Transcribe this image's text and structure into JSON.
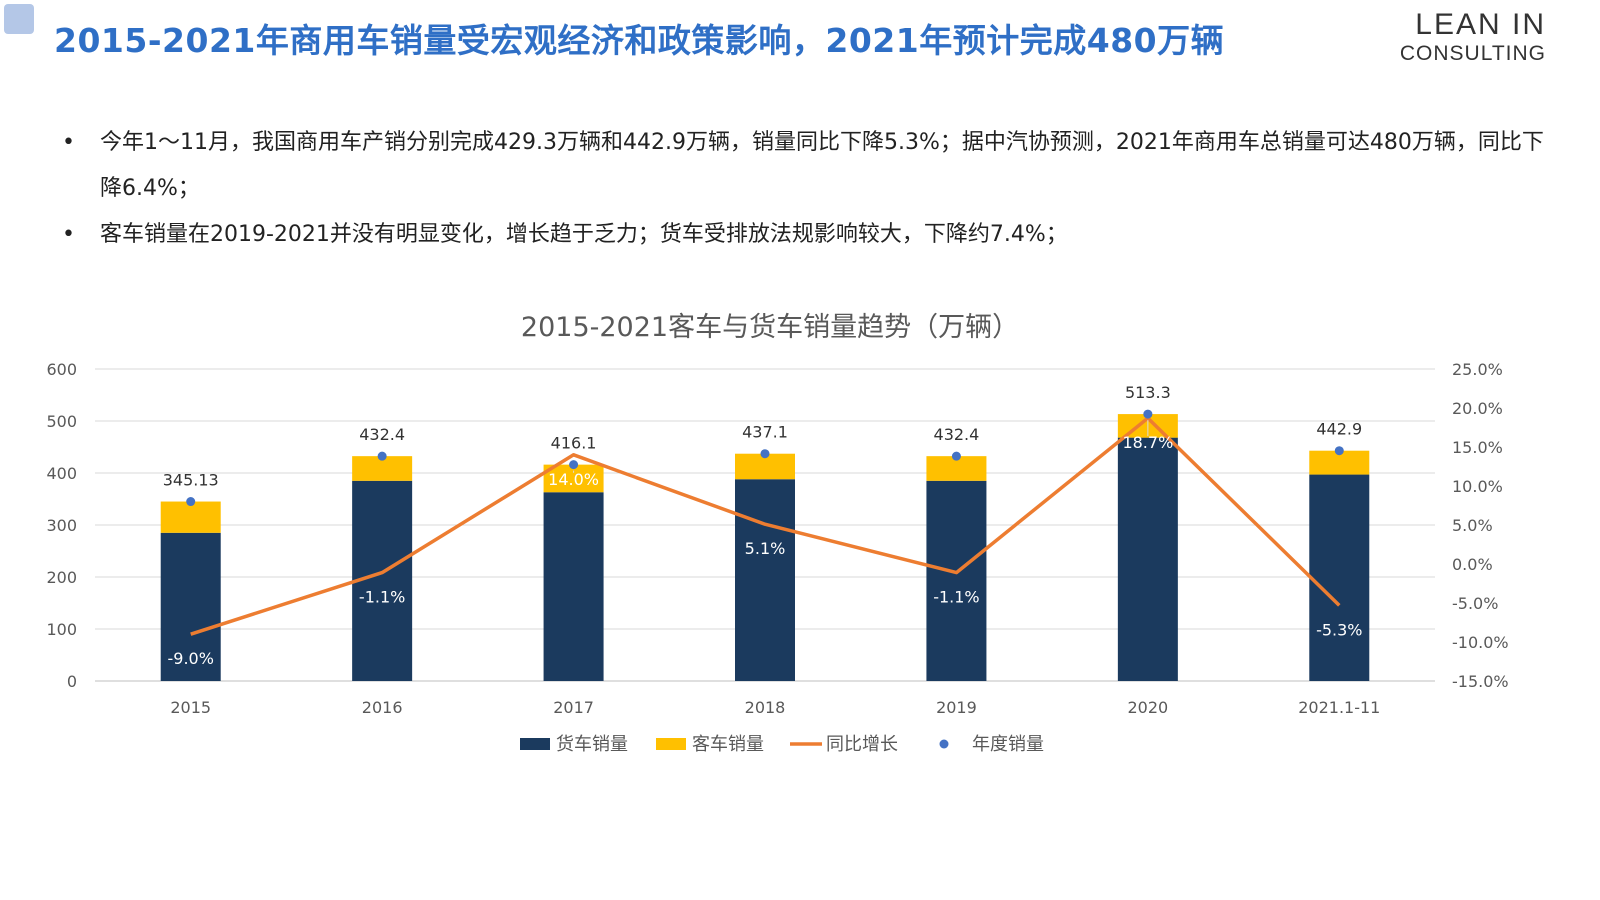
{
  "header": {
    "title": "2015-2021年商用车销量受宏观经济和政策影响，2021年预计完成480万辆",
    "logo_line1": "LEAN IN",
    "logo_line2": "CONSULTING"
  },
  "bullets": [
    "今年1～11月，我国商用车产销分别完成429.3万辆和442.9万辆，销量同比下降5.3%；据中汽协预测，2021年商用车总销量可达480万辆，同比下降6.4%；",
    "客车销量在2019-2021并没有明显变化，增长趋于乏力；货车受排放法规影响较大，下降约7.4%；"
  ],
  "bullet_symbol": "•",
  "chart_data": {
    "type": "bar",
    "stacked": true,
    "title": "2015-2021客车与货车销量趋势（万辆）",
    "categories": [
      "2015",
      "2016",
      "2017",
      "2018",
      "2019",
      "2020",
      "2021.1-11"
    ],
    "series": [
      {
        "name": "货车销量",
        "type": "bar",
        "axis": "left",
        "color": "#1b3a5e",
        "values": [
          285,
          385,
          363,
          388,
          385,
          468,
          397
        ]
      },
      {
        "name": "客车销量",
        "type": "bar",
        "axis": "left",
        "color": "#ffc000",
        "values": [
          60.13,
          47.4,
          53.1,
          49.1,
          47.4,
          45.3,
          45.9
        ]
      },
      {
        "name": "同比增长",
        "type": "line",
        "axis": "right",
        "color": "#ed7d31",
        "values": [
          -9.0,
          -1.1,
          14.0,
          5.1,
          -1.1,
          18.7,
          -5.3
        ],
        "labels": [
          "-9.0%",
          "-1.1%",
          "14.0%",
          "5.1%",
          "-1.1%",
          "18.7%",
          "-5.3%"
        ]
      },
      {
        "name": "年度销量",
        "type": "scatter",
        "axis": "left",
        "color": "#4472c4",
        "values": [
          345.13,
          432.4,
          416.1,
          437.1,
          432.4,
          513.3,
          442.9
        ],
        "labels": [
          "345.13",
          "432.4",
          "416.1",
          "437.1",
          "432.4",
          "513.3",
          "442.9"
        ]
      }
    ],
    "left_axis": {
      "ylim": [
        0,
        600
      ],
      "ticks": [
        "0",
        "100",
        "200",
        "300",
        "400",
        "500",
        "600"
      ]
    },
    "right_axis": {
      "ylim": [
        -15,
        25
      ],
      "ticks": [
        "-15.0%",
        "-10.0%",
        "-5.0%",
        "0.0%",
        "5.0%",
        "10.0%",
        "15.0%",
        "20.0%",
        "25.0%"
      ]
    },
    "grid": true,
    "legend_position": "bottom"
  }
}
